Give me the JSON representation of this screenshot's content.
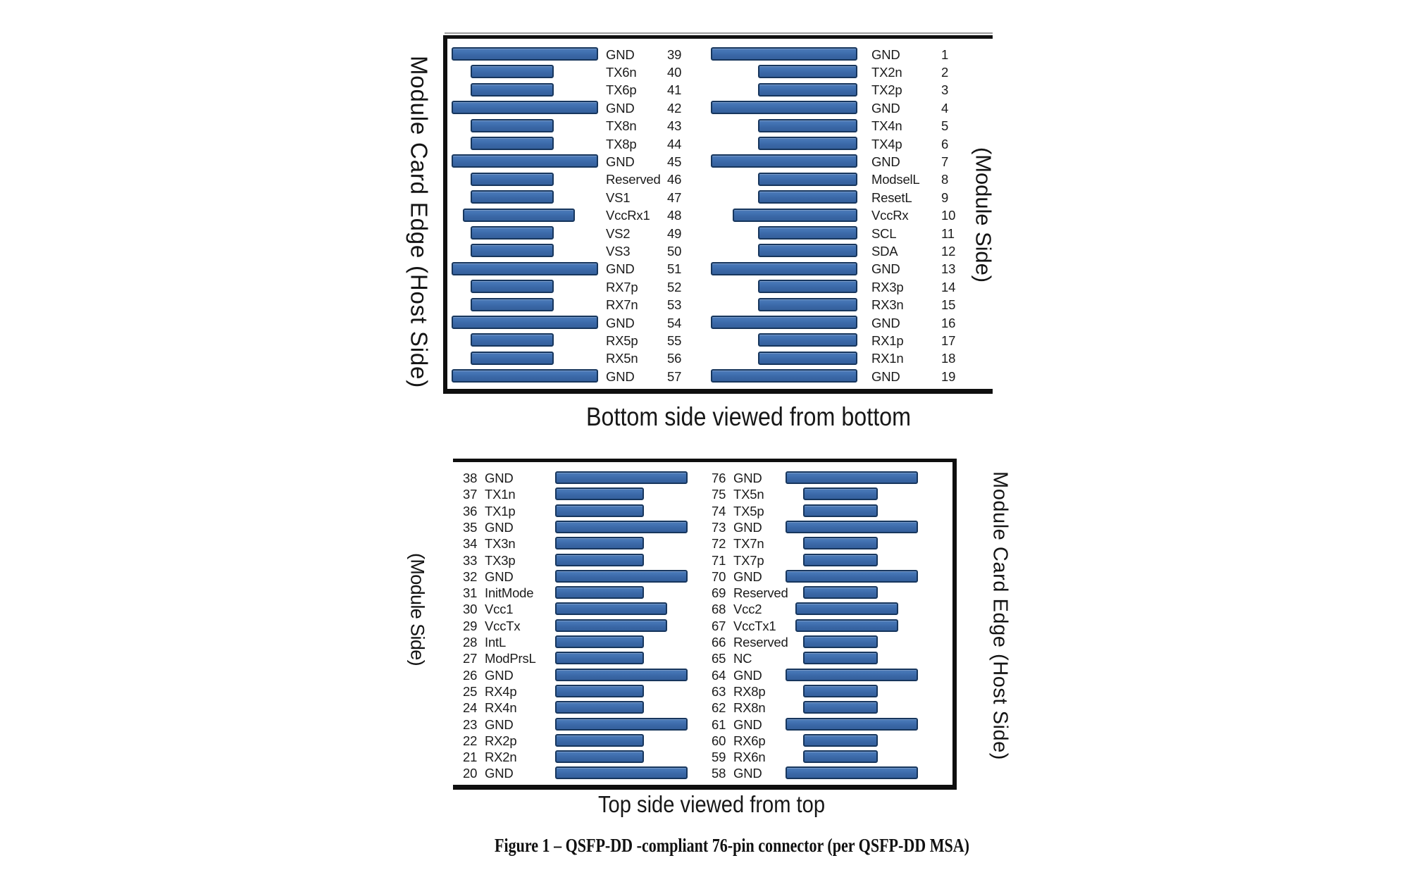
{
  "figure": {
    "caption": "Figure 1 – QSFP-DD -compliant 76-pin connector (per QSFP-DD MSA)"
  },
  "colors": {
    "background": "#ffffff",
    "bar_fill": "#3e6ca9",
    "bar_fill_highlight": "#4d7bb9",
    "bar_fill_shadow": "#35609c",
    "bar_border": "#17365d",
    "panel_border": "#0f0f0f",
    "text": "#1b1b1b"
  },
  "panels": [
    {
      "name": "bottom-side-view",
      "caption": "Bottom side viewed from bottom",
      "left_label": "Module Card Edge (Host Side)",
      "right_label": "(Module Side)",
      "columns": [
        {
          "name": "left",
          "pins": [
            {
              "num": "39",
              "label": "GND",
              "kind": "gnd"
            },
            {
              "num": "40",
              "label": "TX6n",
              "kind": "signal"
            },
            {
              "num": "41",
              "label": "TX6p",
              "kind": "signal"
            },
            {
              "num": "42",
              "label": "GND",
              "kind": "gnd"
            },
            {
              "num": "43",
              "label": "TX8n",
              "kind": "signal"
            },
            {
              "num": "44",
              "label": "TX8p",
              "kind": "signal"
            },
            {
              "num": "45",
              "label": "GND",
              "kind": "gnd"
            },
            {
              "num": "46",
              "label": "Reserved",
              "kind": "signal"
            },
            {
              "num": "47",
              "label": "VS1",
              "kind": "signal"
            },
            {
              "num": "48",
              "label": "VccRx1",
              "kind": "vcc"
            },
            {
              "num": "49",
              "label": "VS2",
              "kind": "signal"
            },
            {
              "num": "50",
              "label": "VS3",
              "kind": "signal"
            },
            {
              "num": "51",
              "label": "GND",
              "kind": "gnd"
            },
            {
              "num": "52",
              "label": "RX7p",
              "kind": "signal"
            },
            {
              "num": "53",
              "label": "RX7n",
              "kind": "signal"
            },
            {
              "num": "54",
              "label": "GND",
              "kind": "gnd"
            },
            {
              "num": "55",
              "label": "RX5p",
              "kind": "signal"
            },
            {
              "num": "56",
              "label": "RX5n",
              "kind": "signal"
            },
            {
              "num": "57",
              "label": "GND",
              "kind": "gnd"
            }
          ]
        },
        {
          "name": "right",
          "pins": [
            {
              "num": "1",
              "label": "GND",
              "kind": "gnd"
            },
            {
              "num": "2",
              "label": "TX2n",
              "kind": "signal"
            },
            {
              "num": "3",
              "label": "TX2p",
              "kind": "signal"
            },
            {
              "num": "4",
              "label": "GND",
              "kind": "gnd"
            },
            {
              "num": "5",
              "label": "TX4n",
              "kind": "signal"
            },
            {
              "num": "6",
              "label": "TX4p",
              "kind": "signal"
            },
            {
              "num": "7",
              "label": "GND",
              "kind": "gnd"
            },
            {
              "num": "8",
              "label": "ModselL",
              "kind": "signal"
            },
            {
              "num": "9",
              "label": "ResetL",
              "kind": "signal"
            },
            {
              "num": "10",
              "label": "VccRx",
              "kind": "vcc"
            },
            {
              "num": "11",
              "label": "SCL",
              "kind": "signal"
            },
            {
              "num": "12",
              "label": "SDA",
              "kind": "signal"
            },
            {
              "num": "13",
              "label": "GND",
              "kind": "gnd"
            },
            {
              "num": "14",
              "label": "RX3p",
              "kind": "signal"
            },
            {
              "num": "15",
              "label": "RX3n",
              "kind": "signal"
            },
            {
              "num": "16",
              "label": "GND",
              "kind": "gnd"
            },
            {
              "num": "17",
              "label": "RX1p",
              "kind": "signal"
            },
            {
              "num": "18",
              "label": "RX1n",
              "kind": "signal"
            },
            {
              "num": "19",
              "label": "GND",
              "kind": "gnd"
            }
          ]
        }
      ]
    },
    {
      "name": "top-side-view",
      "caption": "Top side viewed from top",
      "left_label": "(Module Side)",
      "right_label": "Module Card Edge (Host Side)",
      "columns": [
        {
          "name": "left",
          "pins": [
            {
              "num": "38",
              "label": "GND",
              "kind": "gnd"
            },
            {
              "num": "37",
              "label": "TX1n",
              "kind": "signal"
            },
            {
              "num": "36",
              "label": "TX1p",
              "kind": "signal"
            },
            {
              "num": "35",
              "label": "GND",
              "kind": "gnd"
            },
            {
              "num": "34",
              "label": "TX3n",
              "kind": "signal"
            },
            {
              "num": "33",
              "label": "TX3p",
              "kind": "signal"
            },
            {
              "num": "32",
              "label": "GND",
              "kind": "gnd"
            },
            {
              "num": "31",
              "label": "InitMode",
              "kind": "signal"
            },
            {
              "num": "30",
              "label": "Vcc1",
              "kind": "vcc"
            },
            {
              "num": "29",
              "label": "VccTx",
              "kind": "vcc"
            },
            {
              "num": "28",
              "label": "IntL",
              "kind": "signal"
            },
            {
              "num": "27",
              "label": "ModPrsL",
              "kind": "signal"
            },
            {
              "num": "26",
              "label": "GND",
              "kind": "gnd"
            },
            {
              "num": "25",
              "label": "RX4p",
              "kind": "signal"
            },
            {
              "num": "24",
              "label": "RX4n",
              "kind": "signal"
            },
            {
              "num": "23",
              "label": "GND",
              "kind": "gnd"
            },
            {
              "num": "22",
              "label": "RX2p",
              "kind": "signal"
            },
            {
              "num": "21",
              "label": "RX2n",
              "kind": "signal"
            },
            {
              "num": "20",
              "label": "GND",
              "kind": "gnd"
            }
          ]
        },
        {
          "name": "right",
          "pins": [
            {
              "num": "76",
              "label": "GND",
              "kind": "gnd"
            },
            {
              "num": "75",
              "label": "TX5n",
              "kind": "signal"
            },
            {
              "num": "74",
              "label": "TX5p",
              "kind": "signal"
            },
            {
              "num": "73",
              "label": "GND",
              "kind": "gnd"
            },
            {
              "num": "72",
              "label": "TX7n",
              "kind": "signal"
            },
            {
              "num": "71",
              "label": "TX7p",
              "kind": "signal"
            },
            {
              "num": "70",
              "label": "GND",
              "kind": "gnd"
            },
            {
              "num": "69",
              "label": "Reserved",
              "kind": "signal"
            },
            {
              "num": "68",
              "label": "Vcc2",
              "kind": "vcc"
            },
            {
              "num": "67",
              "label": "VccTx1",
              "kind": "vcc"
            },
            {
              "num": "66",
              "label": "Reserved",
              "kind": "signal"
            },
            {
              "num": "65",
              "label": "NC",
              "kind": "signal"
            },
            {
              "num": "64",
              "label": "GND",
              "kind": "gnd"
            },
            {
              "num": "63",
              "label": "RX8p",
              "kind": "signal"
            },
            {
              "num": "62",
              "label": "RX8n",
              "kind": "signal"
            },
            {
              "num": "61",
              "label": "GND",
              "kind": "gnd"
            },
            {
              "num": "60",
              "label": "RX6p",
              "kind": "signal"
            },
            {
              "num": "59",
              "label": "RX6n",
              "kind": "signal"
            },
            {
              "num": "58",
              "label": "GND",
              "kind": "gnd"
            }
          ]
        }
      ]
    }
  ]
}
